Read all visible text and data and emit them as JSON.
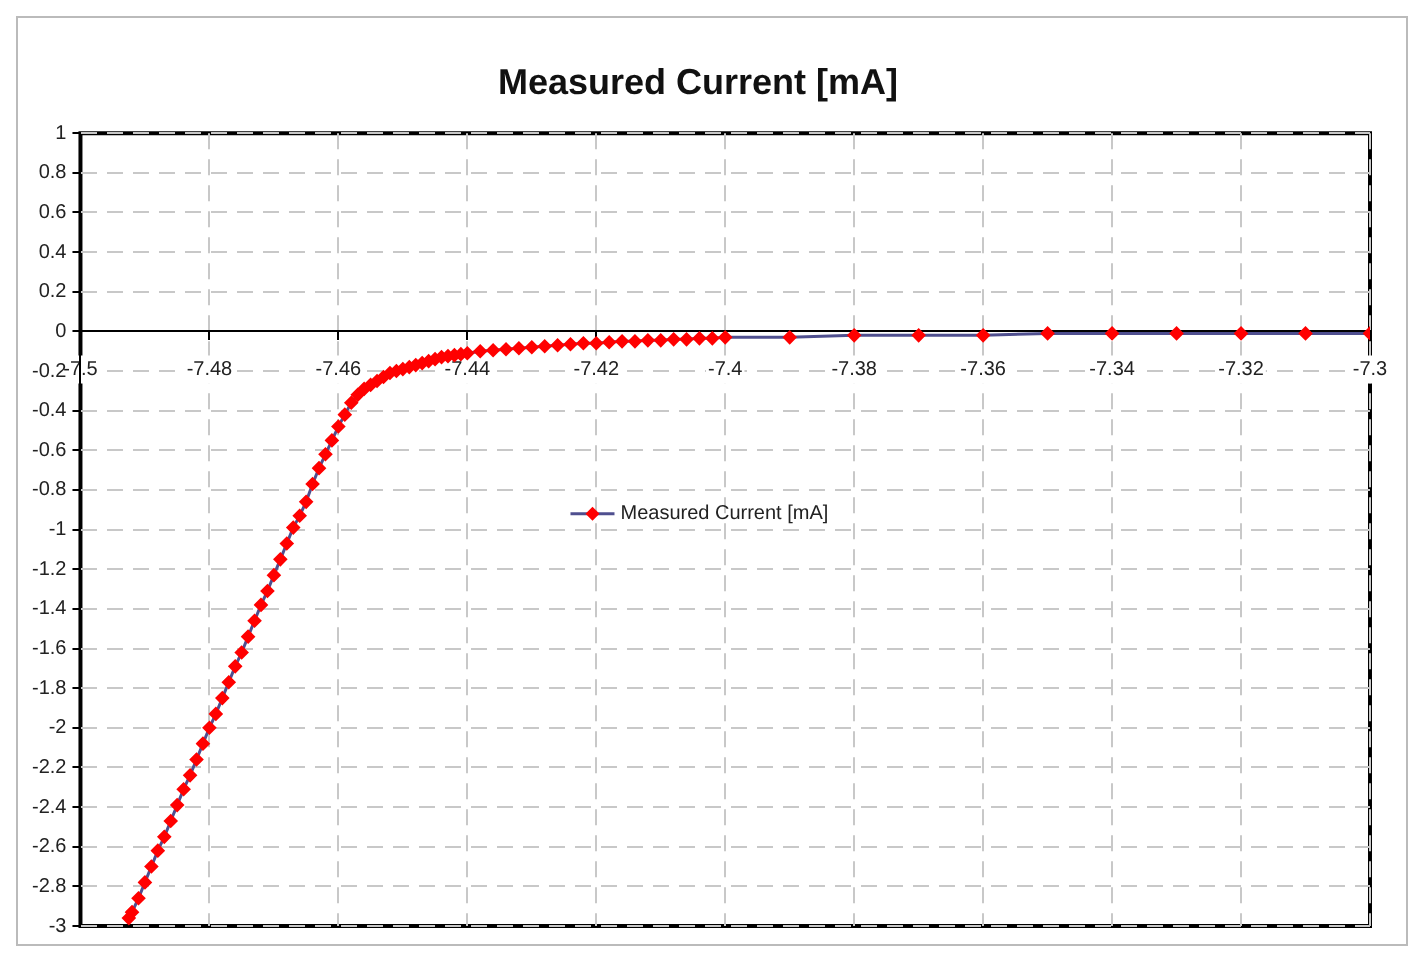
{
  "chart_data": {
    "type": "line",
    "title": "Measured Current [mA]",
    "xlim": [
      -7.5,
      -7.3
    ],
    "xticks": [
      -7.5,
      -7.48,
      -7.46,
      -7.44,
      -7.42,
      -7.4,
      -7.38,
      -7.36,
      -7.34,
      -7.32,
      -7.3
    ],
    "ylim": [
      -3,
      1
    ],
    "yticks": [
      -3,
      -2.8,
      -2.6,
      -2.4,
      -2.2,
      -2,
      -1.8,
      -1.6,
      -1.4,
      -1.2,
      -1,
      -0.8,
      -0.6,
      -0.4,
      -0.2,
      0,
      0.2,
      0.4,
      0.6,
      0.8,
      1
    ],
    "grid": true,
    "legend": "center",
    "marker": "diamond",
    "line_style": "solid",
    "series": [
      {
        "name": "Measured Current [mA]",
        "color": "#ff0000",
        "x": [
          -7.4925,
          -7.492,
          -7.491,
          -7.49,
          -7.489,
          -7.488,
          -7.487,
          -7.486,
          -7.485,
          -7.484,
          -7.483,
          -7.482,
          -7.481,
          -7.48,
          -7.479,
          -7.478,
          -7.477,
          -7.476,
          -7.475,
          -7.474,
          -7.473,
          -7.472,
          -7.471,
          -7.47,
          -7.469,
          -7.468,
          -7.467,
          -7.466,
          -7.465,
          -7.464,
          -7.463,
          -7.462,
          -7.461,
          -7.46,
          -7.459,
          -7.458,
          -7.457,
          -7.456,
          -7.455,
          -7.454,
          -7.453,
          -7.452,
          -7.451,
          -7.45,
          -7.449,
          -7.448,
          -7.447,
          -7.446,
          -7.445,
          -7.444,
          -7.443,
          -7.442,
          -7.441,
          -7.44,
          -7.438,
          -7.436,
          -7.434,
          -7.432,
          -7.43,
          -7.428,
          -7.426,
          -7.424,
          -7.422,
          -7.42,
          -7.418,
          -7.416,
          -7.414,
          -7.412,
          -7.41,
          -7.408,
          -7.406,
          -7.404,
          -7.402,
          -7.4,
          -7.39,
          -7.38,
          -7.37,
          -7.36,
          -7.35,
          -7.34,
          -7.33,
          -7.32,
          -7.31,
          -7.3
        ],
        "values": [
          -2.96,
          -2.93,
          -2.86,
          -2.78,
          -2.7,
          -2.62,
          -2.55,
          -2.47,
          -2.39,
          -2.31,
          -2.24,
          -2.16,
          -2.08,
          -2,
          -1.93,
          -1.85,
          -1.77,
          -1.69,
          -1.62,
          -1.54,
          -1.46,
          -1.38,
          -1.31,
          -1.23,
          -1.15,
          -1.07,
          -0.99,
          -0.93,
          -0.86,
          -0.77,
          -0.69,
          -0.62,
          -0.55,
          -0.48,
          -0.42,
          -0.36,
          -0.32,
          -0.29,
          -0.27,
          -0.25,
          -0.23,
          -0.21,
          -0.2,
          -0.19,
          -0.18,
          -0.17,
          -0.16,
          -0.15,
          -0.14,
          -0.13,
          -0.125,
          -0.12,
          -0.115,
          -0.11,
          -0.1,
          -0.095,
          -0.09,
          -0.085,
          -0.08,
          -0.075,
          -0.07,
          -0.065,
          -0.06,
          -0.06,
          -0.055,
          -0.05,
          -0.05,
          -0.045,
          -0.045,
          -0.04,
          -0.04,
          -0.035,
          -0.035,
          -0.03,
          -0.03,
          -0.02,
          -0.02,
          -0.02,
          -0.01,
          -0.01,
          -0.01,
          -0.01,
          -0.01,
          -0.01
        ]
      }
    ]
  }
}
